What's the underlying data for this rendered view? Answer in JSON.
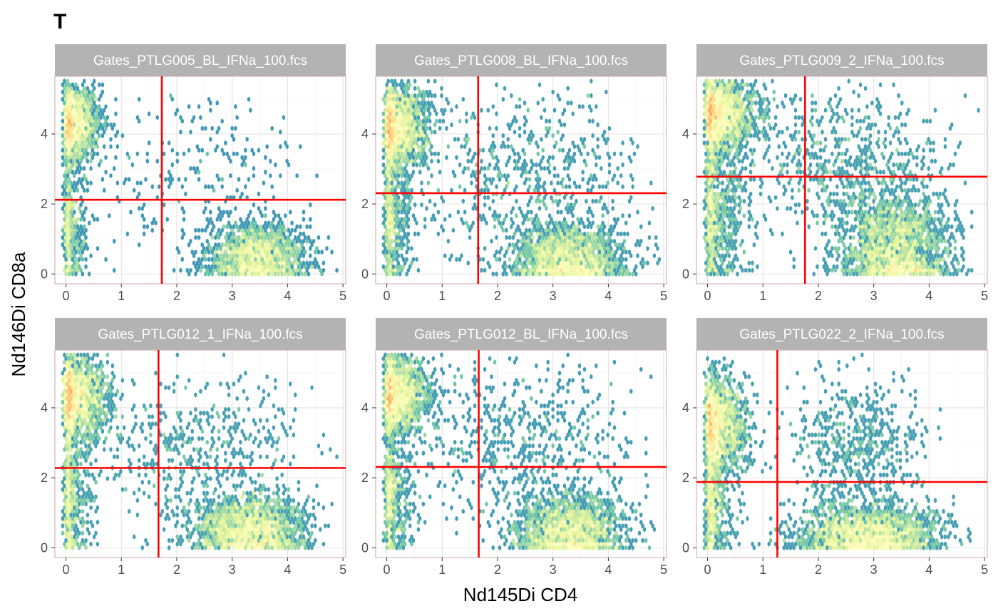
{
  "chart_data": {
    "type": "scatter",
    "subtype": "hexbin-density-facets",
    "title": "T",
    "xlabel": "Nd145Di CD4",
    "ylabel": "Nd146Di CD8a",
    "xlim": [
      -0.2,
      5.05
    ],
    "ylim": [
      -0.28,
      5.65
    ],
    "x_ticks": [
      0,
      1,
      2,
      3,
      4,
      5
    ],
    "y_ticks": [
      0,
      2,
      4
    ],
    "grid": true,
    "strip_color": "#b3b3b3",
    "gate_color": "#ff0000",
    "density_palette": [
      "#5e4fa2",
      "#3288bd",
      "#66c2a5",
      "#abdda4",
      "#e6f598",
      "#ffffbf",
      "#fee08b",
      "#fdae61"
    ],
    "facets": [
      {
        "label": "Gates_PTLG005_BL_IFNa_100.fcs",
        "gate_x": 1.73,
        "gate_y": 2.12,
        "clusters": [
          {
            "cx": 0.12,
            "cy": 4.3,
            "sx": 0.25,
            "sy": 0.55,
            "n": 280
          },
          {
            "cx": 3.45,
            "cy": 0.5,
            "sx": 0.45,
            "sy": 0.45,
            "n": 300
          },
          {
            "cx": 0.05,
            "cy": 1.2,
            "sx": 0.15,
            "sy": 0.9,
            "n": 90
          },
          {
            "cx": 2.3,
            "cy": 2.8,
            "sx": 1.1,
            "sy": 1.2,
            "n": 45
          }
        ]
      },
      {
        "label": "Gates_PTLG008_BL_IFNa_100.fcs",
        "gate_x": 1.65,
        "gate_y": 2.31,
        "clusters": [
          {
            "cx": 0.15,
            "cy": 4.2,
            "sx": 0.3,
            "sy": 0.6,
            "n": 300
          },
          {
            "cx": 3.3,
            "cy": 0.45,
            "sx": 0.5,
            "sy": 0.5,
            "n": 300
          },
          {
            "cx": 0.05,
            "cy": 1.5,
            "sx": 0.2,
            "sy": 1.0,
            "n": 100
          },
          {
            "cx": 2.5,
            "cy": 2.8,
            "sx": 1.0,
            "sy": 1.2,
            "n": 110
          }
        ]
      },
      {
        "label": "Gates_PTLG009_2_IFNa_100.fcs",
        "gate_x": 1.76,
        "gate_y": 2.78,
        "clusters": [
          {
            "cx": 0.2,
            "cy": 4.6,
            "sx": 0.35,
            "sy": 0.55,
            "n": 320
          },
          {
            "cx": 3.4,
            "cy": 0.7,
            "sx": 0.5,
            "sy": 0.8,
            "n": 360
          },
          {
            "cx": 0.1,
            "cy": 1.8,
            "sx": 0.3,
            "sy": 1.1,
            "n": 140
          },
          {
            "cx": 2.4,
            "cy": 3.2,
            "sx": 1.0,
            "sy": 1.0,
            "n": 120
          }
        ]
      },
      {
        "label": "Gates_PTLG012_1_IFNa_100.fcs",
        "gate_x": 1.67,
        "gate_y": 2.28,
        "clusters": [
          {
            "cx": 0.15,
            "cy": 4.3,
            "sx": 0.3,
            "sy": 0.6,
            "n": 300
          },
          {
            "cx": 3.3,
            "cy": 0.5,
            "sx": 0.5,
            "sy": 0.5,
            "n": 320
          },
          {
            "cx": 0.05,
            "cy": 1.4,
            "sx": 0.2,
            "sy": 1.0,
            "n": 100
          },
          {
            "cx": 2.4,
            "cy": 2.8,
            "sx": 1.0,
            "sy": 1.1,
            "n": 90
          }
        ]
      },
      {
        "label": "Gates_PTLG012_BL_IFNa_100.fcs",
        "gate_x": 1.66,
        "gate_y": 2.31,
        "clusters": [
          {
            "cx": 0.15,
            "cy": 4.4,
            "sx": 0.3,
            "sy": 0.55,
            "n": 300
          },
          {
            "cx": 3.3,
            "cy": 0.5,
            "sx": 0.5,
            "sy": 0.5,
            "n": 330
          },
          {
            "cx": 0.05,
            "cy": 1.5,
            "sx": 0.2,
            "sy": 1.0,
            "n": 110
          },
          {
            "cx": 2.4,
            "cy": 2.9,
            "sx": 1.0,
            "sy": 1.1,
            "n": 100
          }
        ]
      },
      {
        "label": "Gates_PTLG022_2_IFNa_100.fcs",
        "gate_x": 1.26,
        "gate_y": 1.88,
        "clusters": [
          {
            "cx": 0.15,
            "cy": 3.5,
            "sx": 0.3,
            "sy": 0.7,
            "n": 300
          },
          {
            "cx": 2.9,
            "cy": 0.4,
            "sx": 0.65,
            "sy": 0.4,
            "n": 360
          },
          {
            "cx": 0.05,
            "cy": 1.2,
            "sx": 0.2,
            "sy": 0.8,
            "n": 110
          },
          {
            "cx": 2.7,
            "cy": 2.8,
            "sx": 0.6,
            "sy": 1.0,
            "n": 100
          }
        ]
      }
    ]
  }
}
